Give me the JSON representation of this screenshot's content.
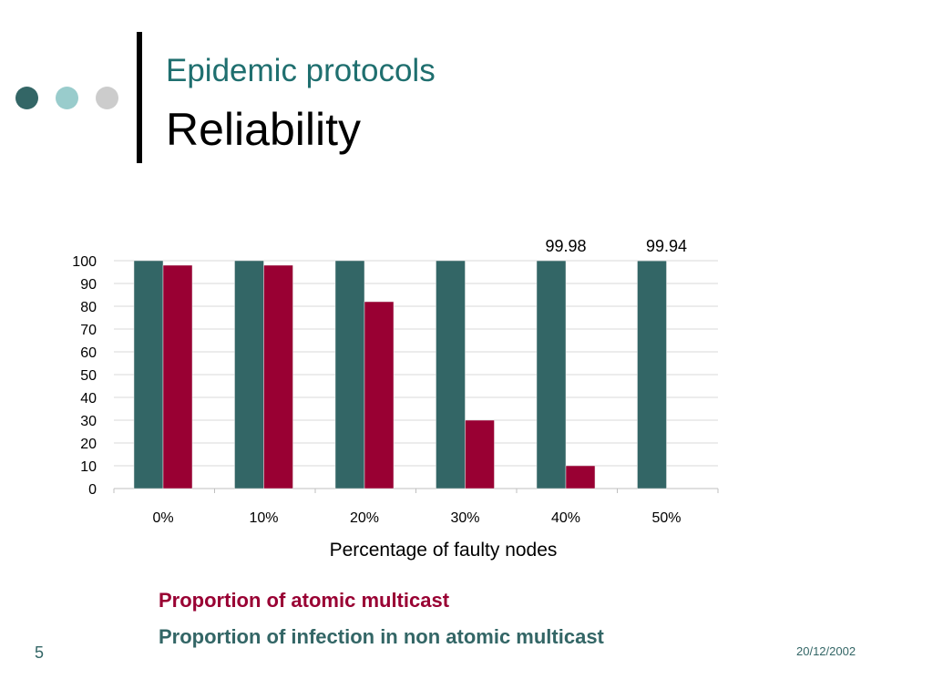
{
  "slide": {
    "subtitle": "Epidemic protocols",
    "title": "Reliability",
    "page_number": "5",
    "date": "20/12/2002"
  },
  "colors": {
    "infection": "#336666",
    "atomic": "#990033",
    "dot_dark": "#336666",
    "dot_light": "#99cccc",
    "dot_grey": "#cccccc"
  },
  "legend": {
    "atomic": "Proportion of atomic multicast",
    "infection": "Proportion of infection in non atomic multicast"
  },
  "chart_data": {
    "type": "bar",
    "categories": [
      "0%",
      "10%",
      "20%",
      "30%",
      "40%",
      "50%"
    ],
    "series": [
      {
        "name": "Proportion of infection in non atomic multicast",
        "values": [
          100,
          100,
          100,
          100,
          99.98,
          99.94
        ],
        "color": "#336666"
      },
      {
        "name": "Proportion of atomic multicast",
        "values": [
          98,
          98,
          82,
          30,
          10,
          0
        ],
        "color": "#990033"
      }
    ],
    "data_labels": [
      {
        "category": "40%",
        "text": "99.98"
      },
      {
        "category": "50%",
        "text": "99.94"
      }
    ],
    "xlabel": "Percentage of faulty nodes",
    "ylabel": "",
    "ylim": [
      0,
      100
    ],
    "yticks": [
      0,
      10,
      20,
      30,
      40,
      50,
      60,
      70,
      80,
      90,
      100
    ],
    "grid": true,
    "legend_position": "bottom"
  }
}
